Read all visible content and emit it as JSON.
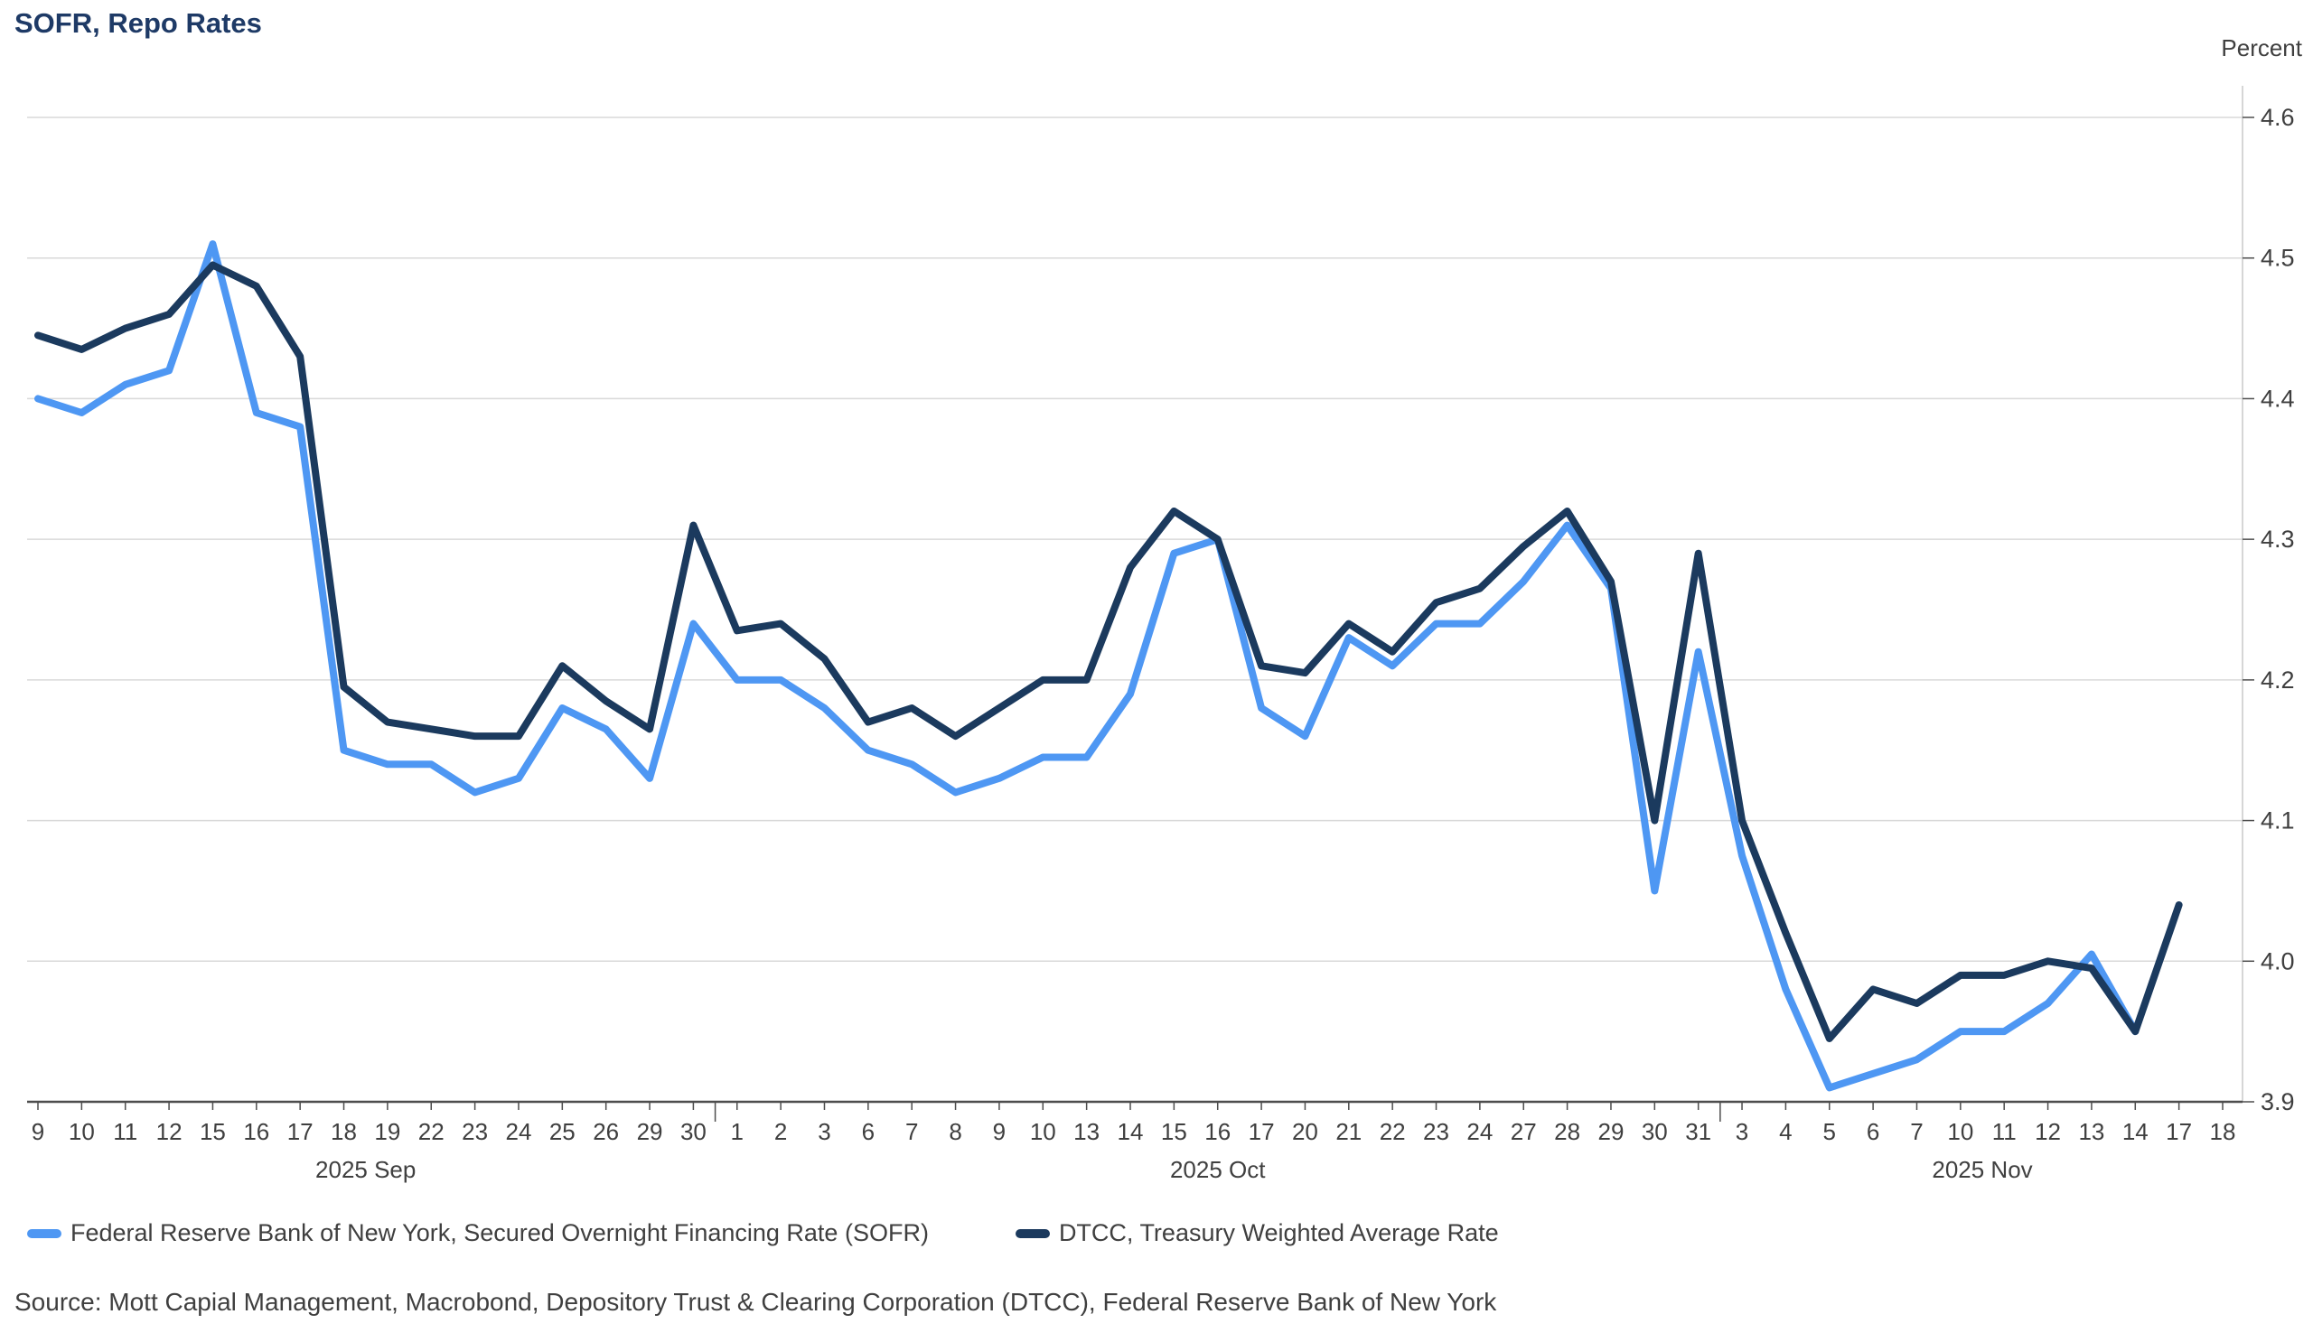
{
  "title": "SOFR, Repo Rates",
  "y_axis": {
    "unit_label": "Percent",
    "tick_labels": [
      "4.6",
      "4.5",
      "4.4",
      "4.3",
      "4.2",
      "4.1",
      "4.0",
      "3.9"
    ]
  },
  "source": "Source: Mott Capial Management, Macrobond, Depository Trust & Clearing Corporation (DTCC), Federal Reserve Bank of New York",
  "colors": {
    "sofr_line": "#4e97f3",
    "dtcc_line": "#1b3a5e",
    "title_text": "#1e3a66",
    "axis_text": "#3f3f3f",
    "gridline": "#d9d9d9",
    "axis_line": "#4d4d4d",
    "right_axis_line": "#c9c9c9"
  },
  "chart_data": {
    "type": "line",
    "title": "SOFR, Repo Rates",
    "xlabel": "",
    "ylabel": "Percent",
    "ylim": [
      3.9,
      4.6
    ],
    "y_step": 0.1,
    "grid": true,
    "legend_position": "bottom",
    "categories": [
      "9",
      "10",
      "11",
      "12",
      "15",
      "16",
      "17",
      "18",
      "19",
      "22",
      "23",
      "24",
      "25",
      "26",
      "29",
      "30",
      "1",
      "2",
      "3",
      "6",
      "7",
      "8",
      "9",
      "10",
      "13",
      "14",
      "15",
      "16",
      "17",
      "20",
      "21",
      "22",
      "23",
      "24",
      "27",
      "28",
      "29",
      "30",
      "31",
      "3",
      "4",
      "5",
      "6",
      "7",
      "10",
      "11",
      "12",
      "13",
      "14",
      "17",
      "18"
    ],
    "months": [
      {
        "label": "2025 Sep",
        "from": 0,
        "to": 15
      },
      {
        "label": "2025 Oct",
        "from": 16,
        "to": 38
      },
      {
        "label": "2025 Nov",
        "from": 39,
        "to": 50
      }
    ],
    "month_boundaries_after_index": [
      15,
      38
    ],
    "series": [
      {
        "name": "Federal Reserve Bank of New York, Secured Overnight Financing Rate (SOFR)",
        "color": "#4e97f3",
        "values": [
          4.4,
          4.39,
          4.41,
          4.42,
          4.51,
          4.39,
          4.38,
          4.15,
          4.14,
          4.14,
          4.12,
          4.13,
          4.18,
          4.165,
          4.13,
          4.24,
          4.2,
          4.2,
          4.18,
          4.15,
          4.14,
          4.12,
          4.13,
          4.145,
          4.145,
          4.19,
          4.29,
          4.3,
          4.18,
          4.16,
          4.23,
          4.21,
          4.24,
          4.24,
          4.27,
          4.31,
          4.265,
          4.05,
          4.22,
          4.075,
          3.98,
          3.91,
          3.92,
          3.93,
          3.95,
          3.95,
          3.97,
          4.005,
          3.95,
          null,
          null
        ]
      },
      {
        "name": "DTCC, Treasury Weighted Average Rate",
        "color": "#1b3a5e",
        "values": [
          4.445,
          4.435,
          4.45,
          4.46,
          4.495,
          4.48,
          4.43,
          4.195,
          4.17,
          4.165,
          4.16,
          4.16,
          4.21,
          4.185,
          4.165,
          4.31,
          4.235,
          4.24,
          4.215,
          4.17,
          4.18,
          4.16,
          4.18,
          4.2,
          4.2,
          4.28,
          4.32,
          4.3,
          4.21,
          4.205,
          4.24,
          4.22,
          4.255,
          4.265,
          4.295,
          4.32,
          4.27,
          4.1,
          4.29,
          4.1,
          4.02,
          3.945,
          3.98,
          3.97,
          3.99,
          3.99,
          4.0,
          3.995,
          3.95,
          4.04,
          null
        ]
      }
    ]
  }
}
